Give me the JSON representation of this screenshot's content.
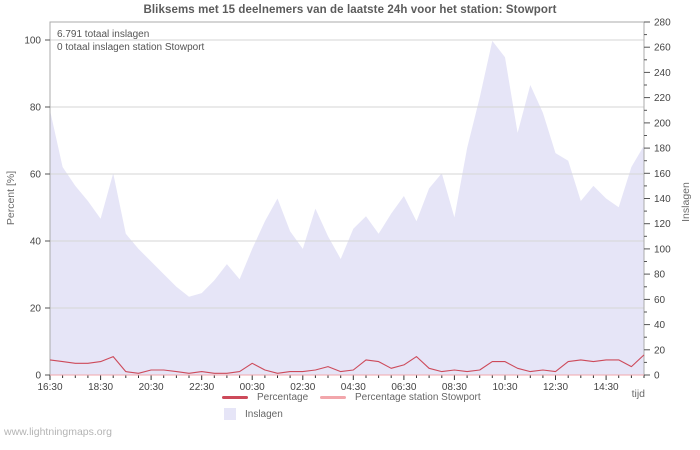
{
  "title": "Bliksems met 15 deelnemers van de laatste 24h voor het station: Stowport",
  "watermark": "www.lightningmaps.org",
  "chart_data": {
    "type": "area",
    "title": "Bliksems met 15 deelnemers van de laatste 24h voor het station: Stowport",
    "xlabel": "tijd",
    "annotations": [
      "6.791 totaal inslagen",
      "0 totaal inslagen station Stowport"
    ],
    "x": [
      "16:30",
      "17:00",
      "17:30",
      "18:00",
      "18:30",
      "19:00",
      "19:30",
      "20:00",
      "20:30",
      "21:00",
      "21:30",
      "22:00",
      "22:30",
      "23:00",
      "23:30",
      "00:00",
      "00:30",
      "01:00",
      "01:30",
      "02:00",
      "02:30",
      "03:00",
      "03:30",
      "04:00",
      "04:30",
      "05:00",
      "05:30",
      "06:00",
      "06:30",
      "07:00",
      "07:30",
      "08:00",
      "08:30",
      "09:00",
      "09:30",
      "10:00",
      "10:30",
      "11:00",
      "11:30",
      "12:00",
      "12:30",
      "13:00",
      "13:30",
      "14:00",
      "14:30",
      "15:00",
      "15:30",
      "16:00"
    ],
    "x_major_every": 4,
    "x_visible_labels": [
      "16:30",
      "18:30",
      "20:30",
      "22:30",
      "00:30",
      "02:30",
      "04:30",
      "06:30",
      "08:30",
      "10:30",
      "12:30",
      "14:30"
    ],
    "left_axis": {
      "label": "Percent  [%]",
      "min": 0,
      "max": 100,
      "ticks": [
        0,
        20,
        40,
        60,
        80,
        100
      ]
    },
    "right_axis": {
      "label": "Inslagen",
      "min": 0,
      "max": 280,
      "ticks": [
        0,
        20,
        40,
        60,
        80,
        100,
        120,
        140,
        160,
        180,
        200,
        220,
        240,
        260,
        280
      ],
      "minor_step": 10
    },
    "grid": "horizontal",
    "legend_position": "bottom",
    "grid_color": "#d6d6d6",
    "frame_color": "#ababab",
    "axis_color": "#555555",
    "tick_text_color": "#454545",
    "series": [
      {
        "name": "Inslagen",
        "type": "area",
        "axis": "right",
        "color": "#e6e5f7",
        "values": [
          210,
          165,
          150,
          138,
          124,
          160,
          112,
          100,
          90,
          80,
          70,
          62,
          65,
          75,
          88,
          76,
          100,
          122,
          140,
          114,
          100,
          132,
          110,
          92,
          116,
          126,
          112,
          128,
          142,
          122,
          148,
          160,
          125,
          180,
          220,
          265,
          252,
          192,
          230,
          208,
          176,
          170,
          138,
          150,
          140,
          133,
          165,
          182
        ]
      },
      {
        "name": "Percentage",
        "type": "line",
        "axis": "left",
        "color": "#cd4a5a",
        "values": [
          4.5,
          4,
          3.5,
          3.5,
          4,
          5.5,
          1,
          0.5,
          1.5,
          1.5,
          1,
          0.5,
          1,
          0.5,
          0.5,
          1,
          3.5,
          1.5,
          0.5,
          1,
          1,
          1.5,
          2.5,
          1,
          1.5,
          4.5,
          4,
          2,
          3,
          5.5,
          2,
          1,
          1.5,
          1,
          1.5,
          4,
          4,
          2,
          1,
          1.5,
          1,
          4,
          4.5,
          4,
          4.5,
          4.5,
          2.5,
          6
        ]
      },
      {
        "name": "Percentage station Stowport",
        "type": "line",
        "axis": "left",
        "color": "#f2a6ab",
        "values": [
          0,
          0,
          0,
          0,
          0,
          0,
          0,
          0,
          0,
          0,
          0,
          0,
          0,
          0,
          0,
          0,
          0,
          0,
          0,
          0,
          0,
          0,
          0,
          0,
          0,
          0,
          0,
          0,
          0,
          0,
          0,
          0,
          0,
          0,
          0,
          0,
          0,
          0,
          0,
          0,
          0,
          0,
          0,
          0,
          0,
          0,
          0,
          0
        ]
      }
    ]
  }
}
